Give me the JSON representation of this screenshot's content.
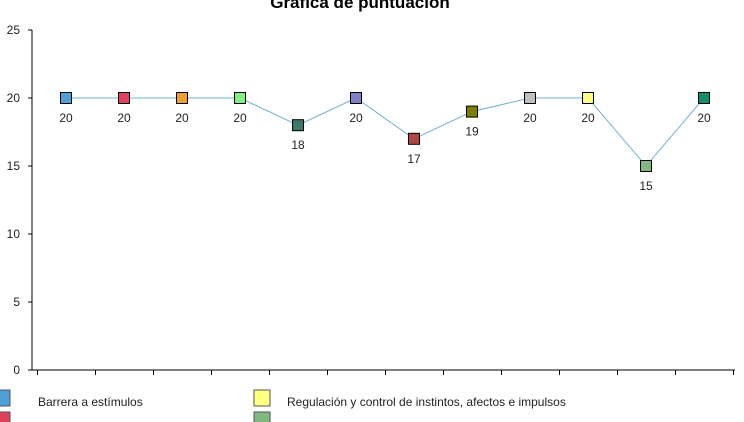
{
  "chart_data": {
    "type": "line",
    "title": "Gráfica de puntuación",
    "xlabel": "",
    "ylabel": "",
    "ylim": [
      0,
      25
    ],
    "yticks": [
      0,
      5,
      10,
      15,
      20,
      25
    ],
    "grid": false,
    "line_color": "#6fb3d6",
    "points": [
      {
        "value": 20,
        "color": "#4f9fd8"
      },
      {
        "value": 20,
        "color": "#e0405a"
      },
      {
        "value": 20,
        "color": "#f0a030"
      },
      {
        "value": 20,
        "color": "#80f080"
      },
      {
        "value": 18,
        "color": "#3a7a6a"
      },
      {
        "value": 20,
        "color": "#8080c8"
      },
      {
        "value": 17,
        "color": "#b04848"
      },
      {
        "value": 19,
        "color": "#808000"
      },
      {
        "value": 20,
        "color": "#c0c0c0"
      },
      {
        "value": 20,
        "color": "#ffff80"
      },
      {
        "value": 15,
        "color": "#80b880"
      },
      {
        "value": 20,
        "color": "#10906a"
      }
    ],
    "legend_position": "bottom",
    "legend": [
      {
        "label": "Barrera a estímulos",
        "color": "#4f9fd8"
      },
      {
        "label": "Regulación y control de instintos, afectos e impulsos",
        "color": "#ffff80"
      },
      {
        "label": "",
        "color": "#e0405a"
      },
      {
        "label": "",
        "color": "#80b880"
      }
    ]
  }
}
